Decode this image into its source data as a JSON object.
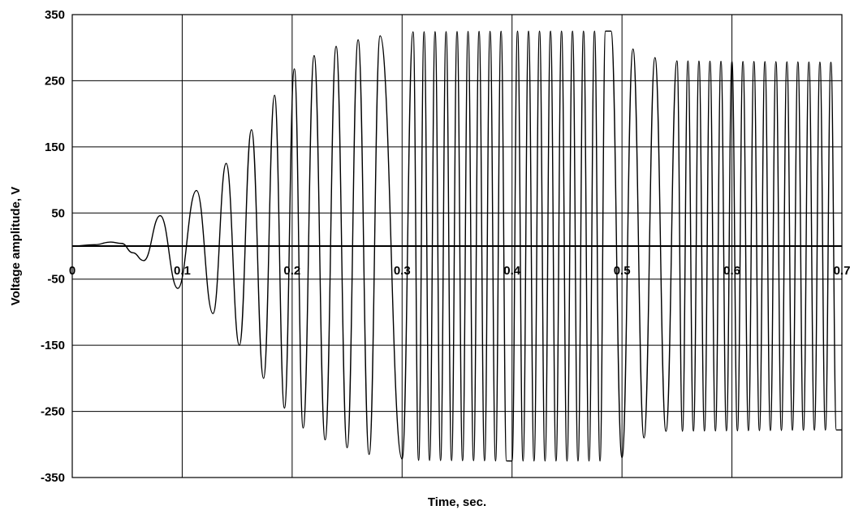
{
  "chart_data": {
    "type": "line",
    "title": "",
    "xlabel": "Time, sec.",
    "ylabel": "Voltage amplitude, V",
    "xlim": [
      0,
      0.7
    ],
    "ylim": [
      -350,
      350
    ],
    "x_ticks": [
      0,
      0.1,
      0.2,
      0.3,
      0.4,
      0.5,
      0.6,
      0.7
    ],
    "x_tick_labels": [
      "0",
      "0.1",
      "0.2",
      "0.3",
      "0.4",
      "0.5",
      "0.6",
      "0.7"
    ],
    "y_ticks": [
      350,
      250,
      150,
      50,
      -50,
      -150,
      -250,
      -350
    ],
    "y_tick_labels": [
      "350",
      "250",
      "150",
      "50",
      "-50",
      "-150",
      "-250",
      "-350"
    ],
    "grid": true,
    "legend": "none",
    "series": [
      {
        "color": "#000000",
        "points": [
          [
            0.0,
            0
          ],
          [
            0.02,
            2
          ],
          [
            0.035,
            6
          ],
          [
            0.045,
            4
          ],
          [
            0.055,
            -10
          ],
          [
            0.065,
            -22
          ],
          [
            0.08,
            46
          ],
          [
            0.096,
            -64
          ],
          [
            0.113,
            84
          ],
          [
            0.128,
            -102
          ],
          [
            0.14,
            125
          ],
          [
            0.152,
            -150
          ],
          [
            0.163,
            176
          ],
          [
            0.174,
            -200
          ],
          [
            0.184,
            228
          ],
          [
            0.193,
            -245
          ],
          [
            0.202,
            268
          ],
          [
            0.21,
            -275
          ],
          [
            0.22,
            288
          ],
          [
            0.23,
            -293
          ],
          [
            0.24,
            302
          ],
          [
            0.25,
            -305
          ],
          [
            0.26,
            312
          ],
          [
            0.27,
            -315
          ],
          [
            0.28,
            318
          ],
          [
            0.3,
            -322
          ],
          [
            0.31,
            324
          ],
          [
            0.4,
            -325
          ],
          [
            0.49,
            325
          ],
          [
            0.5,
            -320
          ],
          [
            0.51,
            298
          ],
          [
            0.52,
            -290
          ],
          [
            0.53,
            285
          ],
          [
            0.54,
            -280
          ],
          [
            0.55,
            280
          ],
          [
            0.7,
            -278
          ]
        ]
      },
      {
        "color": "#000000",
        "x": [
          0,
          0.7
        ],
        "y": [
          0,
          0
        ]
      }
    ]
  }
}
